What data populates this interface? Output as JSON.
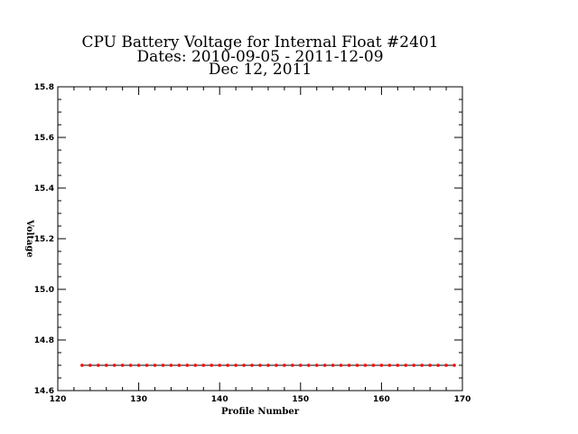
{
  "chart_data": {
    "type": "line",
    "title_lines": [
      "CPU Battery Voltage for Internal Float #2401",
      "Dates:  2010-09-05 -  2011-12-09",
      "Dec 12, 2011"
    ],
    "xlabel": "Profile Number",
    "ylabel": "Voltage",
    "xlim": [
      120,
      170
    ],
    "ylim": [
      14.6,
      15.8
    ],
    "x_ticks": [
      "120",
      "130",
      "140",
      "150",
      "160",
      "170"
    ],
    "y_ticks": [
      "14.6",
      "14.8",
      "15.0",
      "15.2",
      "15.4",
      "15.6",
      "15.8"
    ],
    "grid": false,
    "line_color": "#000000",
    "marker_color": "#ff0000",
    "series": [
      {
        "x": [
          123,
          124,
          125,
          126,
          127,
          128,
          129,
          130,
          131,
          132,
          133,
          134,
          135,
          136,
          137,
          138,
          139,
          140,
          141,
          142,
          143,
          144,
          145,
          146,
          147,
          148,
          149,
          150,
          151,
          152,
          153,
          154,
          155,
          156,
          157,
          158,
          159,
          160,
          161,
          162,
          163,
          164,
          165,
          166,
          167,
          168,
          169
        ],
        "values": [
          14.7,
          14.7,
          14.7,
          14.7,
          14.7,
          14.7,
          14.7,
          14.7,
          14.7,
          14.7,
          14.7,
          14.7,
          14.7,
          14.7,
          14.7,
          14.7,
          14.7,
          14.7,
          14.7,
          14.7,
          14.7,
          14.7,
          14.7,
          14.7,
          14.7,
          14.7,
          14.7,
          14.7,
          14.7,
          14.7,
          14.7,
          14.7,
          14.7,
          14.7,
          14.7,
          14.7,
          14.7,
          14.7,
          14.7,
          14.7,
          14.7,
          14.7,
          14.7,
          14.7,
          14.7,
          14.7,
          14.7
        ]
      }
    ]
  }
}
